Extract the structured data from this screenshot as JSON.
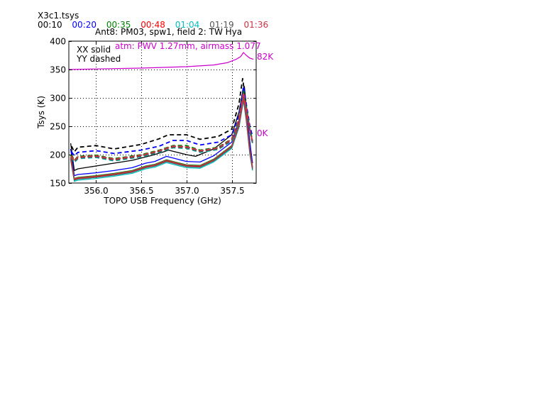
{
  "header": {
    "file_title": "X3c1.tsys",
    "time_legend": [
      {
        "label": "00:10",
        "color": "#000000"
      },
      {
        "label": "00:20",
        "color": "#0000ff"
      },
      {
        "label": "00:35",
        "color": "#008000"
      },
      {
        "label": "00:48",
        "color": "#ff0000"
      },
      {
        "label": "01:04",
        "color": "#00bfbf"
      },
      {
        "label": "01:19",
        "color": "#555555"
      },
      {
        "label": "01:36",
        "color": "#cc3344"
      }
    ],
    "plot_title": "Ant8: PM03,  spw1,  field 2: TW Hya"
  },
  "legend": {
    "xx": "XX solid",
    "yy": "YY dashed"
  },
  "annotations": {
    "atm": "atm: PWV 1.27mm, airmass 1.077",
    "right_top": "82K",
    "right_bottom": "0K",
    "atm_color": "#cc00cc"
  },
  "chart_data": {
    "type": "line",
    "title": "Ant8: PM03,  spw1,  field 2: TW Hya",
    "xlabel": "TOPO USB Frequency (GHz)",
    "ylabel": "Tsys (K)",
    "xlim": [
      355.7,
      357.77
    ],
    "ylim": [
      150,
      400
    ],
    "xticks": [
      356.0,
      356.5,
      357.0,
      357.5
    ],
    "xtick_labels": [
      "356.0",
      "356.5",
      "357.0",
      "357.5"
    ],
    "yticks": [
      150,
      200,
      250,
      300,
      350,
      400
    ],
    "ytick_labels": [
      "150",
      "200",
      "250",
      "300",
      "350",
      "400"
    ],
    "grid": true,
    "legend_text": [
      "XX solid",
      "YY dashed"
    ],
    "series": [
      {
        "name": "00:10 XX",
        "color": "#000000",
        "style": "solid",
        "x": [
          355.72,
          355.76,
          355.8,
          356.0,
          356.2,
          356.4,
          356.6,
          356.75,
          356.8,
          357.0,
          357.1,
          357.3,
          357.5,
          357.58,
          357.62,
          357.64,
          357.68,
          357.72
        ],
        "y": [
          220,
          172,
          175,
          180,
          185,
          190,
          198,
          205,
          208,
          200,
          197,
          210,
          235,
          275,
          310,
          320,
          250,
          195
        ]
      },
      {
        "name": "00:10 YY",
        "color": "#000000",
        "style": "dashed",
        "x": [
          355.73,
          355.76,
          355.8,
          356.0,
          356.2,
          356.5,
          356.7,
          356.8,
          357.0,
          357.15,
          357.35,
          357.5,
          357.58,
          357.62,
          357.65,
          357.68,
          357.73
        ],
        "y": [
          215,
          205,
          213,
          216,
          210,
          218,
          228,
          235,
          235,
          227,
          232,
          245,
          290,
          334,
          300,
          260,
          220
        ]
      },
      {
        "name": "00:20 XX",
        "color": "#0000ff",
        "style": "solid",
        "x": [
          355.72,
          355.76,
          355.8,
          356.0,
          356.2,
          356.4,
          356.55,
          356.65,
          356.78,
          356.9,
          357.0,
          357.15,
          357.3,
          357.5,
          357.58,
          357.63,
          357.66,
          357.7,
          357.73
        ],
        "y": [
          210,
          163,
          165,
          168,
          172,
          177,
          185,
          188,
          197,
          192,
          188,
          187,
          198,
          222,
          260,
          318,
          280,
          220,
          185
        ]
      },
      {
        "name": "00:20 YY",
        "color": "#0000ff",
        "style": "dashed",
        "x": [
          355.73,
          355.76,
          355.8,
          356.0,
          356.2,
          356.5,
          356.7,
          356.85,
          357.0,
          357.15,
          357.35,
          357.5,
          357.58,
          357.63,
          357.66,
          357.7,
          357.73
        ],
        "y": [
          205,
          198,
          204,
          207,
          202,
          208,
          215,
          225,
          225,
          217,
          222,
          235,
          270,
          320,
          290,
          250,
          232
        ]
      },
      {
        "name": "00:35 XX",
        "color": "#008000",
        "style": "solid",
        "x": [
          355.72,
          355.76,
          355.8,
          356.0,
          356.2,
          356.4,
          356.55,
          356.65,
          356.78,
          356.9,
          357.0,
          357.15,
          357.3,
          357.5,
          357.58,
          357.63,
          357.66,
          357.7,
          357.73
        ],
        "y": [
          200,
          158,
          160,
          163,
          167,
          172,
          180,
          183,
          191,
          186,
          182,
          181,
          192,
          216,
          255,
          305,
          270,
          210,
          178
        ]
      },
      {
        "name": "00:35 YY",
        "color": "#008000",
        "style": "dashed",
        "x": [
          355.73,
          355.76,
          355.8,
          356.0,
          356.2,
          356.5,
          356.7,
          356.85,
          357.0,
          357.15,
          357.35,
          357.5,
          357.58,
          357.63,
          357.66,
          357.7,
          357.73
        ],
        "y": [
          200,
          190,
          197,
          199,
          193,
          200,
          208,
          216,
          216,
          208,
          213,
          228,
          265,
          312,
          285,
          245,
          225
        ]
      },
      {
        "name": "00:48 XX",
        "color": "#ff0000",
        "style": "solid",
        "x": [
          355.72,
          355.76,
          355.8,
          356.0,
          356.2,
          356.4,
          356.55,
          356.65,
          356.78,
          356.9,
          357.0,
          357.15,
          357.3,
          357.5,
          357.58,
          357.63,
          357.66,
          357.7,
          357.73
        ],
        "y": [
          195,
          156,
          158,
          161,
          165,
          170,
          178,
          181,
          189,
          184,
          180,
          179,
          190,
          214,
          252,
          300,
          265,
          205,
          176
        ]
      },
      {
        "name": "00:48 YY",
        "color": "#ff0000",
        "style": "dashed",
        "x": [
          355.73,
          355.76,
          355.8,
          356.0,
          356.2,
          356.5,
          356.7,
          356.85,
          357.0,
          357.15,
          357.35,
          357.5,
          357.58,
          357.63,
          357.66,
          357.7,
          357.73
        ],
        "y": [
          198,
          188,
          195,
          197,
          191,
          198,
          206,
          214,
          213,
          206,
          211,
          226,
          262,
          308,
          282,
          242,
          222
        ]
      },
      {
        "name": "01:04 XX",
        "color": "#00bfbf",
        "style": "solid",
        "x": [
          355.72,
          355.76,
          355.8,
          356.0,
          356.2,
          356.4,
          356.55,
          356.65,
          356.78,
          356.9,
          357.0,
          357.15,
          357.3,
          357.5,
          357.58,
          357.63,
          357.66,
          357.7,
          357.73
        ],
        "y": [
          190,
          153,
          155,
          158,
          162,
          167,
          175,
          178,
          186,
          181,
          177,
          176,
          187,
          211,
          248,
          295,
          260,
          200,
          172
        ]
      },
      {
        "name": "01:04 YY",
        "color": "#00bfbf",
        "style": "dashed",
        "x": [
          355.73,
          355.76,
          355.8,
          356.0,
          356.2,
          356.5,
          356.7,
          356.85,
          357.0,
          357.15,
          357.35,
          357.5,
          357.58,
          357.63,
          357.66,
          357.7,
          357.73
        ],
        "y": [
          195,
          186,
          193,
          195,
          189,
          196,
          204,
          212,
          211,
          204,
          209,
          224,
          260,
          305,
          280,
          240,
          220
        ]
      },
      {
        "name": "01:19 XX",
        "color": "#555555",
        "style": "solid",
        "x": [
          355.72,
          355.76,
          355.8,
          356.0,
          356.2,
          356.4,
          356.55,
          356.65,
          356.78,
          356.9,
          357.0,
          357.15,
          357.3,
          357.5,
          357.58,
          357.63,
          357.66,
          357.7,
          357.73
        ],
        "y": [
          192,
          155,
          157,
          160,
          164,
          169,
          177,
          180,
          188,
          183,
          179,
          178,
          189,
          213,
          250,
          298,
          262,
          203,
          174
        ]
      },
      {
        "name": "01:19 YY",
        "color": "#555555",
        "style": "dashed",
        "x": [
          355.73,
          355.76,
          355.8,
          356.0,
          356.2,
          356.5,
          356.7,
          356.85,
          357.0,
          357.15,
          357.35,
          357.5,
          357.58,
          357.63,
          357.66,
          357.7,
          357.73
        ],
        "y": [
          196,
          187,
          194,
          196,
          190,
          197,
          205,
          213,
          212,
          205,
          210,
          225,
          261,
          306,
          281,
          241,
          221
        ]
      },
      {
        "name": "01:36 XX",
        "color": "#cc3344",
        "style": "solid",
        "x": [
          355.72,
          355.76,
          355.8,
          356.0,
          356.2,
          356.4,
          356.55,
          356.65,
          356.78,
          356.9,
          357.0,
          357.15,
          357.3,
          357.5,
          357.58,
          357.63,
          357.66,
          357.7,
          357.73
        ],
        "y": [
          193,
          157,
          159,
          162,
          166,
          171,
          179,
          182,
          190,
          185,
          181,
          180,
          191,
          215,
          253,
          302,
          267,
          207,
          177
        ]
      },
      {
        "name": "01:36 YY",
        "color": "#cc3344",
        "style": "dashed",
        "x": [
          355.73,
          355.76,
          355.8,
          356.0,
          356.2,
          356.5,
          356.7,
          356.85,
          357.0,
          357.15,
          357.35,
          357.5,
          357.58,
          357.63,
          357.66,
          357.7,
          357.73
        ],
        "y": [
          197,
          189,
          196,
          198,
          192,
          199,
          207,
          215,
          214,
          207,
          212,
          227,
          263,
          310,
          283,
          243,
          223
        ]
      },
      {
        "name": "atm",
        "color": "#cc00cc",
        "style": "solid",
        "x": [
          355.7,
          356.0,
          356.5,
          357.0,
          357.3,
          357.45,
          357.55,
          357.6,
          357.63,
          357.66,
          357.7,
          357.74
        ],
        "y": [
          350,
          351,
          352.5,
          355,
          358,
          362,
          368,
          373,
          380,
          375,
          370,
          368
        ]
      }
    ]
  }
}
